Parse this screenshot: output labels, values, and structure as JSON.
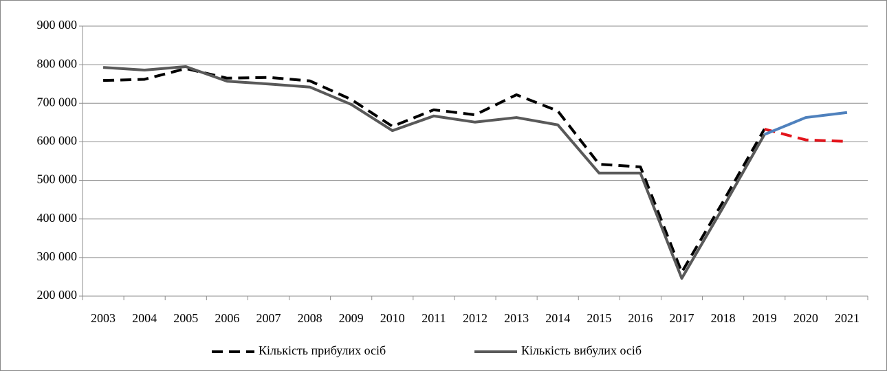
{
  "chart_data": {
    "type": "line",
    "categories": [
      "2003",
      "2004",
      "2005",
      "2006",
      "2007",
      "2008",
      "2009",
      "2010",
      "2011",
      "2012",
      "2013",
      "2014",
      "2015",
      "2016",
      "2017",
      "2018",
      "2019",
      "2020",
      "2021"
    ],
    "series": [
      {
        "name": "Кількість прибулих осіб",
        "color": "#000000",
        "dash": true,
        "forecast_from_index": 16,
        "forecast_color": "#e3141b",
        "values": [
          759000,
          762000,
          790000,
          765000,
          767000,
          758000,
          710000,
          640000,
          683000,
          670000,
          722000,
          680000,
          542000,
          535000,
          262000,
          445000,
          633000,
          605000,
          601000
        ]
      },
      {
        "name": "Кількість вибулих осіб",
        "color": "#595959",
        "dash": false,
        "forecast_from_index": 16,
        "forecast_color": "#4f81bd",
        "values": [
          793000,
          786000,
          795000,
          757000,
          750000,
          742000,
          697000,
          629000,
          667000,
          651000,
          663000,
          644000,
          519000,
          519000,
          246000,
          430000,
          619000,
          663000,
          676000
        ]
      }
    ],
    "ylim": [
      200000,
      900000
    ],
    "yticks": [
      {
        "value": 200000,
        "label": "200 000"
      },
      {
        "value": 300000,
        "label": "300 000"
      },
      {
        "value": 400000,
        "label": "400 000"
      },
      {
        "value": 500000,
        "label": "500 000"
      },
      {
        "value": 600000,
        "label": "600 000"
      },
      {
        "value": 700000,
        "label": "700 000"
      },
      {
        "value": 800000,
        "label": "800 000"
      },
      {
        "value": 900000,
        "label": "900 000"
      }
    ],
    "grid": true,
    "legend": "bottom"
  }
}
